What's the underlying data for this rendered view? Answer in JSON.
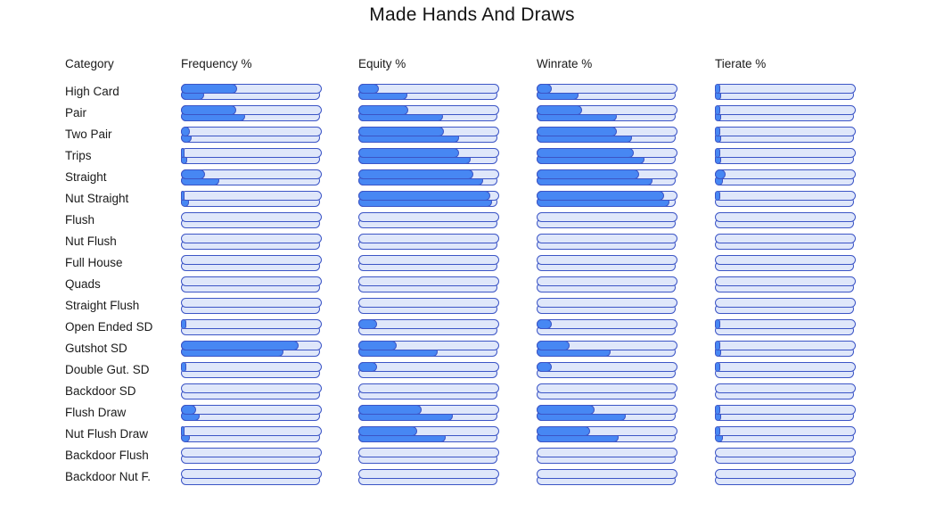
{
  "title": "Made Hands And Draws",
  "columns": [
    "Category",
    "Frequency %",
    "Equity %",
    "Winrate %",
    "Tierate %"
  ],
  "colors": {
    "bar_fill": "#4787f3",
    "bar_border": "#3c55c6",
    "bar_track": "#dfe7fa",
    "text": "#1b1b1b",
    "background": "#ffffff"
  },
  "chart_data": {
    "type": "bar",
    "title": "Made Hands And Draws",
    "orientation": "horizontal",
    "note": "Each category row shows two stacked progress bars (top and bottom) per metric column; values are estimated bar-fill percentages of the 0-100 track.",
    "categories": [
      "High Card",
      "Pair",
      "Two Pair",
      "Trips",
      "Straight",
      "Nut Straight",
      "Flush",
      "Nut Flush",
      "Full House",
      "Quads",
      "Straight Flush",
      "Open Ended SD",
      "Gutshot SD",
      "Double Gut. SD",
      "Backdoor SD",
      "Flush Draw",
      "Nut Flush Draw",
      "Backdoor Flush",
      "Backdoor Nut F."
    ],
    "xlim": [
      0,
      100
    ],
    "grid": false,
    "legend": false,
    "series": [
      {
        "name": "Frequency % (top bar)",
        "values": [
          39,
          38,
          5,
          1,
          16,
          1,
          0,
          0,
          0,
          0,
          0,
          2,
          83,
          2,
          0,
          9,
          1,
          0,
          0
        ]
      },
      {
        "name": "Frequency % (bottom bar)",
        "values": [
          15,
          45,
          6,
          3,
          26,
          4,
          0,
          0,
          0,
          0,
          0,
          0,
          73,
          0,
          0,
          12,
          5,
          0,
          0
        ]
      },
      {
        "name": "Equity % (top bar)",
        "values": [
          13,
          34,
          60,
          71,
          81,
          93,
          0,
          0,
          0,
          0,
          0,
          12,
          26,
          12,
          0,
          44,
          41,
          0,
          0
        ]
      },
      {
        "name": "Equity % (bottom bar)",
        "values": [
          34,
          60,
          72,
          80,
          89,
          96,
          0,
          0,
          0,
          0,
          0,
          0,
          56,
          0,
          0,
          67,
          62,
          0,
          0
        ]
      },
      {
        "name": "Winrate % (top bar)",
        "values": [
          9,
          31,
          56,
          68,
          72,
          90,
          0,
          0,
          0,
          0,
          0,
          9,
          22,
          9,
          0,
          40,
          37,
          0,
          0
        ]
      },
      {
        "name": "Winrate % (bottom bar)",
        "values": [
          29,
          57,
          68,
          77,
          83,
          95,
          0,
          0,
          0,
          0,
          0,
          0,
          52,
          0,
          0,
          63,
          58,
          0,
          0
        ]
      },
      {
        "name": "Tierate % (top bar)",
        "values": [
          2,
          2,
          2,
          2,
          6,
          2,
          0,
          0,
          0,
          0,
          0,
          2,
          2,
          2,
          0,
          2,
          2,
          0,
          0
        ]
      },
      {
        "name": "Tierate % (bottom bar)",
        "values": [
          3,
          3,
          3,
          3,
          4,
          0,
          0,
          0,
          0,
          0,
          0,
          0,
          3,
          0,
          0,
          3,
          4,
          0,
          0
        ]
      }
    ]
  }
}
